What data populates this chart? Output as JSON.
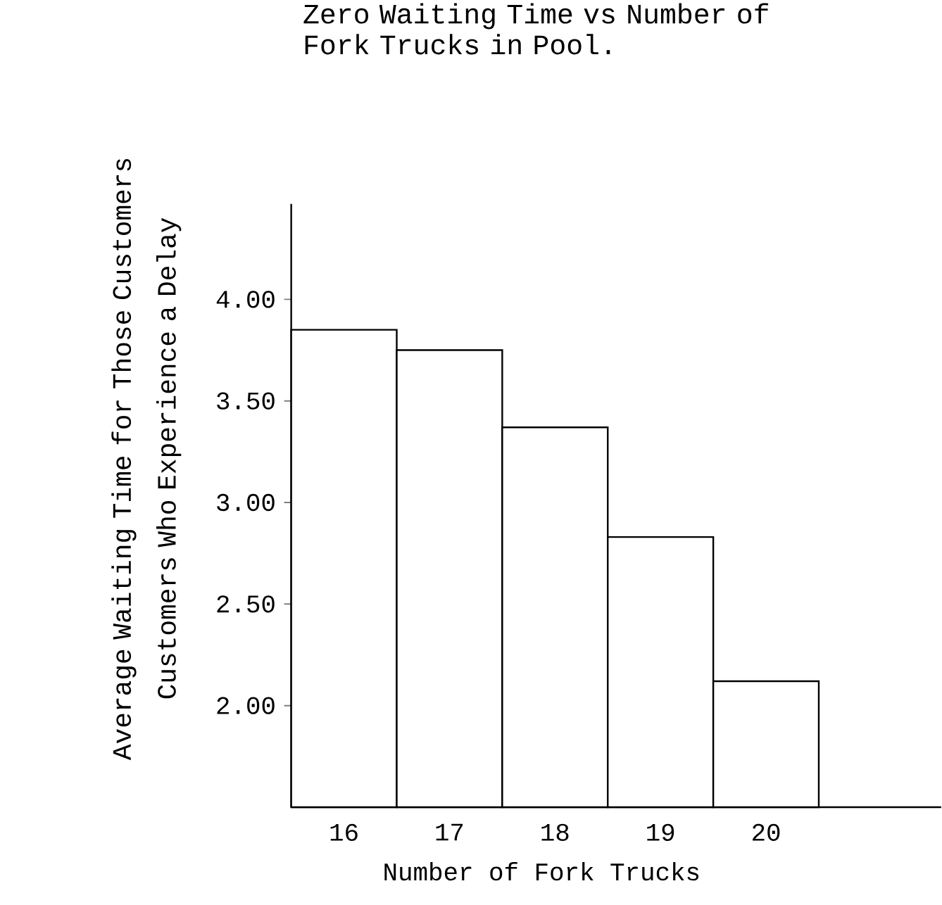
{
  "chart_data": {
    "type": "bar",
    "title": "Zero Waiting Time vs Number of Fork Trucks in Pool.",
    "xlabel": "Number of Fork Trucks",
    "ylabel": "Average Waiting Time for Those Customers Customers Who Experience a Delay",
    "categories": [
      "16",
      "17",
      "18",
      "19",
      "20",
      null
    ],
    "values": [
      3.85,
      3.75,
      3.37,
      2.83,
      2.12,
      null
    ],
    "color": "#ffffff",
    "ylim": [
      1.5,
      4.47
    ],
    "yticks": [
      {
        "value": 2,
        "label": "2.00"
      },
      {
        "value": 2.5,
        "label": "2.50"
      },
      {
        "value": 3,
        "label": "3.00"
      },
      {
        "value": 3.5,
        "label": "3.50"
      },
      {
        "value": 4,
        "label": "4.00"
      }
    ],
    "grid": false
  }
}
